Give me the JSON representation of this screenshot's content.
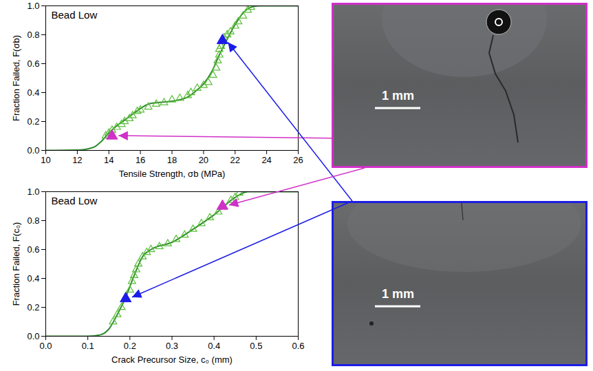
{
  "chart_data": [
    {
      "type": "scatter",
      "title": "Bead Low",
      "x_label": "Tensile Strength, σb (MPa)",
      "y_label": "Fraction Failed, F(σb)",
      "xlim": [
        10,
        26
      ],
      "xticks": [
        10,
        12,
        14,
        16,
        18,
        20,
        22,
        24,
        26
      ],
      "ylim": [
        0,
        1
      ],
      "yticks": [
        {
          "value": 0,
          "label": "0.0"
        },
        0.2,
        0.4,
        0.6,
        0.8,
        {
          "value": 1,
          "label": "1.0"
        }
      ],
      "series": [
        {
          "type": "line",
          "color": "#2e8b2e",
          "line_style": "solid",
          "x": [
            10,
            12,
            13,
            13.5,
            14,
            14.5,
            15,
            15.5,
            16,
            16.5,
            17,
            18,
            19,
            19.5,
            20,
            20.5,
            21,
            21.5,
            22,
            22.5,
            23,
            23.5,
            26
          ],
          "values": [
            0,
            0.002,
            0.02,
            0.06,
            0.12,
            0.17,
            0.21,
            0.25,
            0.29,
            0.32,
            0.33,
            0.34,
            0.37,
            0.41,
            0.46,
            0.54,
            0.66,
            0.77,
            0.87,
            0.95,
            0.99,
            1,
            1
          ]
        },
        {
          "type": "scatter",
          "color": "#5cbf3a",
          "marker": "triangle-open",
          "x": [
            13.8,
            14.0,
            14.2,
            14.5,
            14.8,
            15.0,
            15.3,
            15.5,
            15.8,
            16.0,
            16.5,
            17.0,
            17.5,
            18.0,
            18.5,
            19.0,
            19.2,
            19.6,
            20.0,
            20.3,
            20.6,
            20.8,
            20.9,
            21.0,
            21.0,
            21.1,
            21.3,
            21.5,
            21.7,
            22.0,
            22.2,
            22.5,
            22.8,
            23.0
          ],
          "values": [
            0.1,
            0.12,
            0.14,
            0.16,
            0.18,
            0.2,
            0.22,
            0.24,
            0.27,
            0.28,
            0.3,
            0.32,
            0.33,
            0.35,
            0.36,
            0.38,
            0.4,
            0.43,
            0.45,
            0.47,
            0.52,
            0.57,
            0.62,
            0.66,
            0.7,
            0.72,
            0.78,
            0.8,
            0.82,
            0.86,
            0.89,
            0.93,
            0.97,
            0.99
          ]
        },
        {
          "type": "scatter",
          "color": "#d030c8",
          "marker": "triangle",
          "x": [
            14.2
          ],
          "values": [
            0.1
          ]
        },
        {
          "type": "scatter",
          "color": "#1c1ce8",
          "marker": "triangle",
          "x": [
            21.2
          ],
          "values": [
            0.76
          ]
        }
      ]
    },
    {
      "type": "scatter",
      "title": "Bead Low",
      "x_label": "Crack Precursor Size, c₀ (mm)",
      "y_label": "Fraction Failed, F(c₀)",
      "xlim": [
        0,
        0.6
      ],
      "xticks": [
        {
          "value": 0,
          "label": "0.0"
        },
        0.1,
        0.2,
        0.3,
        0.4,
        0.5,
        0.6
      ],
      "ylim": [
        0,
        1
      ],
      "yticks": [
        {
          "value": 0,
          "label": "0.0"
        },
        0.2,
        0.4,
        0.6,
        0.8,
        {
          "value": 1,
          "label": "1.0"
        }
      ],
      "series": [
        {
          "type": "line",
          "color": "#2e8b2e",
          "line_style": "solid",
          "x": [
            0,
            0.1,
            0.13,
            0.15,
            0.17,
            0.19,
            0.21,
            0.23,
            0.25,
            0.3,
            0.35,
            0.4,
            0.45,
            0.48,
            0.6
          ],
          "values": [
            0,
            0,
            0.01,
            0.05,
            0.15,
            0.27,
            0.42,
            0.55,
            0.6,
            0.65,
            0.74,
            0.84,
            0.96,
            1,
            1
          ]
        },
        {
          "type": "scatter",
          "color": "#5cbf3a",
          "marker": "triangle-open",
          "x": [
            0.16,
            0.17,
            0.18,
            0.19,
            0.2,
            0.205,
            0.21,
            0.215,
            0.22,
            0.23,
            0.24,
            0.25,
            0.27,
            0.29,
            0.31,
            0.33,
            0.35,
            0.37,
            0.39,
            0.41,
            0.42,
            0.44,
            0.45,
            0.46
          ],
          "values": [
            0.1,
            0.15,
            0.2,
            0.26,
            0.32,
            0.38,
            0.42,
            0.46,
            0.5,
            0.55,
            0.58,
            0.6,
            0.62,
            0.64,
            0.67,
            0.7,
            0.74,
            0.78,
            0.82,
            0.86,
            0.9,
            0.94,
            0.96,
            0.99
          ]
        },
        {
          "type": "scatter",
          "color": "#d030c8",
          "marker": "triangle",
          "x": [
            0.42
          ],
          "values": [
            0.9
          ]
        },
        {
          "type": "scatter",
          "color": "#1c1ce8",
          "marker": "triangle",
          "x": [
            0.19
          ],
          "values": [
            0.26
          ]
        }
      ]
    }
  ],
  "images": [
    {
      "border_color": "#d030c8",
      "scale_bar": "1 mm"
    },
    {
      "border_color": "#1c1ce8",
      "scale_bar": "1 mm"
    }
  ]
}
